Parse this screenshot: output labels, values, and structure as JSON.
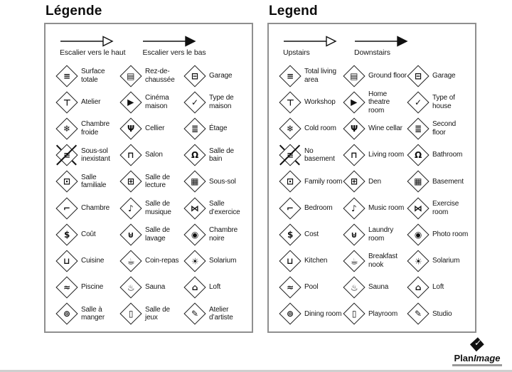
{
  "page": {
    "background": "#ffffff",
    "ink": "#161616",
    "box_border": "#8f8f8f"
  },
  "logo": {
    "name": "PlanImage",
    "part1": "Plan",
    "part2": "Image",
    "mark_glyph": "◆",
    "check_glyph": "✓"
  },
  "panels": [
    {
      "id": "fr",
      "title": "Légende",
      "arrows": [
        {
          "label": "Escalier vers le haut",
          "head": "open"
        },
        {
          "label": "Escalier vers le bas",
          "head": "filled"
        }
      ],
      "items": [
        {
          "label": "Surface totale",
          "icon": "surface-totale",
          "glyph": "≡",
          "crossed": false
        },
        {
          "label": "Rez-de-chaussée",
          "icon": "rez-de-chaussee",
          "glyph": "▤",
          "crossed": false
        },
        {
          "label": "Garage",
          "icon": "garage",
          "glyph": "⊟",
          "crossed": false
        },
        {
          "label": "Atelier",
          "icon": "atelier",
          "glyph": "⊤",
          "crossed": false
        },
        {
          "label": "Cinéma maison",
          "icon": "cinema-maison",
          "glyph": "▶",
          "crossed": false
        },
        {
          "label": "Type de maison",
          "icon": "type-de-maison",
          "glyph": "✓",
          "crossed": false
        },
        {
          "label": "Chambre froide",
          "icon": "chambre-froide",
          "glyph": "❄",
          "crossed": false
        },
        {
          "label": "Cellier",
          "icon": "cellier",
          "glyph": "Ψ",
          "crossed": false
        },
        {
          "label": "Étage",
          "icon": "etage",
          "glyph": "≣",
          "crossed": false
        },
        {
          "label": "Sous-sol inexistant",
          "icon": "sous-sol-inexistant",
          "glyph": "≡",
          "crossed": true
        },
        {
          "label": "Salon",
          "icon": "salon",
          "glyph": "⊓",
          "crossed": false
        },
        {
          "label": "Salle de bain",
          "icon": "salle-de-bain",
          "glyph": "Ω",
          "crossed": false
        },
        {
          "label": "Salle familiale",
          "icon": "salle-familiale",
          "glyph": "⊡",
          "crossed": false
        },
        {
          "label": "Salle de lecture",
          "icon": "salle-de-lecture",
          "glyph": "⊞",
          "crossed": false
        },
        {
          "label": "Sous-sol",
          "icon": "sous-sol",
          "glyph": "▦",
          "crossed": false
        },
        {
          "label": "Chambre",
          "icon": "chambre",
          "glyph": "⌐",
          "crossed": false
        },
        {
          "label": "Salle de musique",
          "icon": "salle-de-musique",
          "glyph": "♪",
          "crossed": false
        },
        {
          "label": "Salle d’exercice",
          "icon": "salle-d-exercice",
          "glyph": "⋈",
          "crossed": false
        },
        {
          "label": "Coût",
          "icon": "cout",
          "glyph": "$",
          "crossed": false
        },
        {
          "label": "Salle de lavage",
          "icon": "salle-de-lavage",
          "glyph": "⊎",
          "crossed": false
        },
        {
          "label": "Chambre noire",
          "icon": "chambre-noire",
          "glyph": "◉",
          "crossed": false
        },
        {
          "label": "Cuisine",
          "icon": "cuisine",
          "glyph": "⊔",
          "crossed": false
        },
        {
          "label": "Coin-repas",
          "icon": "coin-repas",
          "glyph": "☕",
          "crossed": false
        },
        {
          "label": "Solarium",
          "icon": "solarium",
          "glyph": "☀",
          "crossed": false
        },
        {
          "label": "Piscine",
          "icon": "piscine",
          "glyph": "≈",
          "crossed": false
        },
        {
          "label": "Sauna",
          "icon": "sauna",
          "glyph": "♨",
          "crossed": false
        },
        {
          "label": "Loft",
          "icon": "loft",
          "glyph": "⌂",
          "crossed": false
        },
        {
          "label": "Salle à manger",
          "icon": "salle-a-manger",
          "glyph": "⊚",
          "crossed": false
        },
        {
          "label": "Salle de jeux",
          "icon": "salle-de-jeux",
          "glyph": "▯",
          "crossed": false
        },
        {
          "label": "Atelier d’artiste",
          "icon": "atelier-d-artiste",
          "glyph": "✎",
          "crossed": false
        }
      ]
    },
    {
      "id": "en",
      "title": "Legend",
      "arrows": [
        {
          "label": "Upstairs",
          "head": "open"
        },
        {
          "label": "Downstairs",
          "head": "filled"
        }
      ],
      "items": [
        {
          "label": "Total living area",
          "icon": "total-living-area",
          "glyph": "≡",
          "crossed": false
        },
        {
          "label": "Ground floor",
          "icon": "ground-floor",
          "glyph": "▤",
          "crossed": false
        },
        {
          "label": "Garage",
          "icon": "garage",
          "glyph": "⊟",
          "crossed": false
        },
        {
          "label": "Workshop",
          "icon": "workshop",
          "glyph": "⊤",
          "crossed": false
        },
        {
          "label": "Home theatre room",
          "icon": "home-theatre-room",
          "glyph": "▶",
          "crossed": false
        },
        {
          "label": "Type of house",
          "icon": "type-of-house",
          "glyph": "✓",
          "crossed": false
        },
        {
          "label": "Cold room",
          "icon": "cold-room",
          "glyph": "❄",
          "crossed": false
        },
        {
          "label": "Wine cellar",
          "icon": "wine-cellar",
          "glyph": "Ψ",
          "crossed": false
        },
        {
          "label": "Second floor",
          "icon": "second-floor",
          "glyph": "≣",
          "crossed": false
        },
        {
          "label": "No basement",
          "icon": "no-basement",
          "glyph": "≡",
          "crossed": true
        },
        {
          "label": "Living room",
          "icon": "living-room",
          "glyph": "⊓",
          "crossed": false
        },
        {
          "label": "Bathroom",
          "icon": "bathroom",
          "glyph": "Ω",
          "crossed": false
        },
        {
          "label": "Family room",
          "icon": "family-room",
          "glyph": "⊡",
          "crossed": false
        },
        {
          "label": "Den",
          "icon": "den",
          "glyph": "⊞",
          "crossed": false
        },
        {
          "label": "Basement",
          "icon": "basement",
          "glyph": "▦",
          "crossed": false
        },
        {
          "label": "Bedroom",
          "icon": "bedroom",
          "glyph": "⌐",
          "crossed": false
        },
        {
          "label": "Music room",
          "icon": "music-room",
          "glyph": "♪",
          "crossed": false
        },
        {
          "label": "Exercise room",
          "icon": "exercise-room",
          "glyph": "⋈",
          "crossed": false
        },
        {
          "label": "Cost",
          "icon": "cost",
          "glyph": "$",
          "crossed": false
        },
        {
          "label": "Laundry room",
          "icon": "laundry-room",
          "glyph": "⊎",
          "crossed": false
        },
        {
          "label": "Photo room",
          "icon": "photo-room",
          "glyph": "◉",
          "crossed": false
        },
        {
          "label": "Kitchen",
          "icon": "kitchen",
          "glyph": "⊔",
          "crossed": false
        },
        {
          "label": "Breakfast nook",
          "icon": "breakfast-nook",
          "glyph": "☕",
          "crossed": false
        },
        {
          "label": "Solarium",
          "icon": "solarium",
          "glyph": "☀",
          "crossed": false
        },
        {
          "label": "Pool",
          "icon": "pool",
          "glyph": "≈",
          "crossed": false
        },
        {
          "label": "Sauna",
          "icon": "sauna",
          "glyph": "♨",
          "crossed": false
        },
        {
          "label": "Loft",
          "icon": "loft",
          "glyph": "⌂",
          "crossed": false
        },
        {
          "label": "Dining room",
          "icon": "dining-room",
          "glyph": "⊚",
          "crossed": false
        },
        {
          "label": "Playroom",
          "icon": "playroom",
          "glyph": "▯",
          "crossed": false
        },
        {
          "label": "Studio",
          "icon": "studio",
          "glyph": "✎",
          "crossed": false
        }
      ]
    }
  ]
}
